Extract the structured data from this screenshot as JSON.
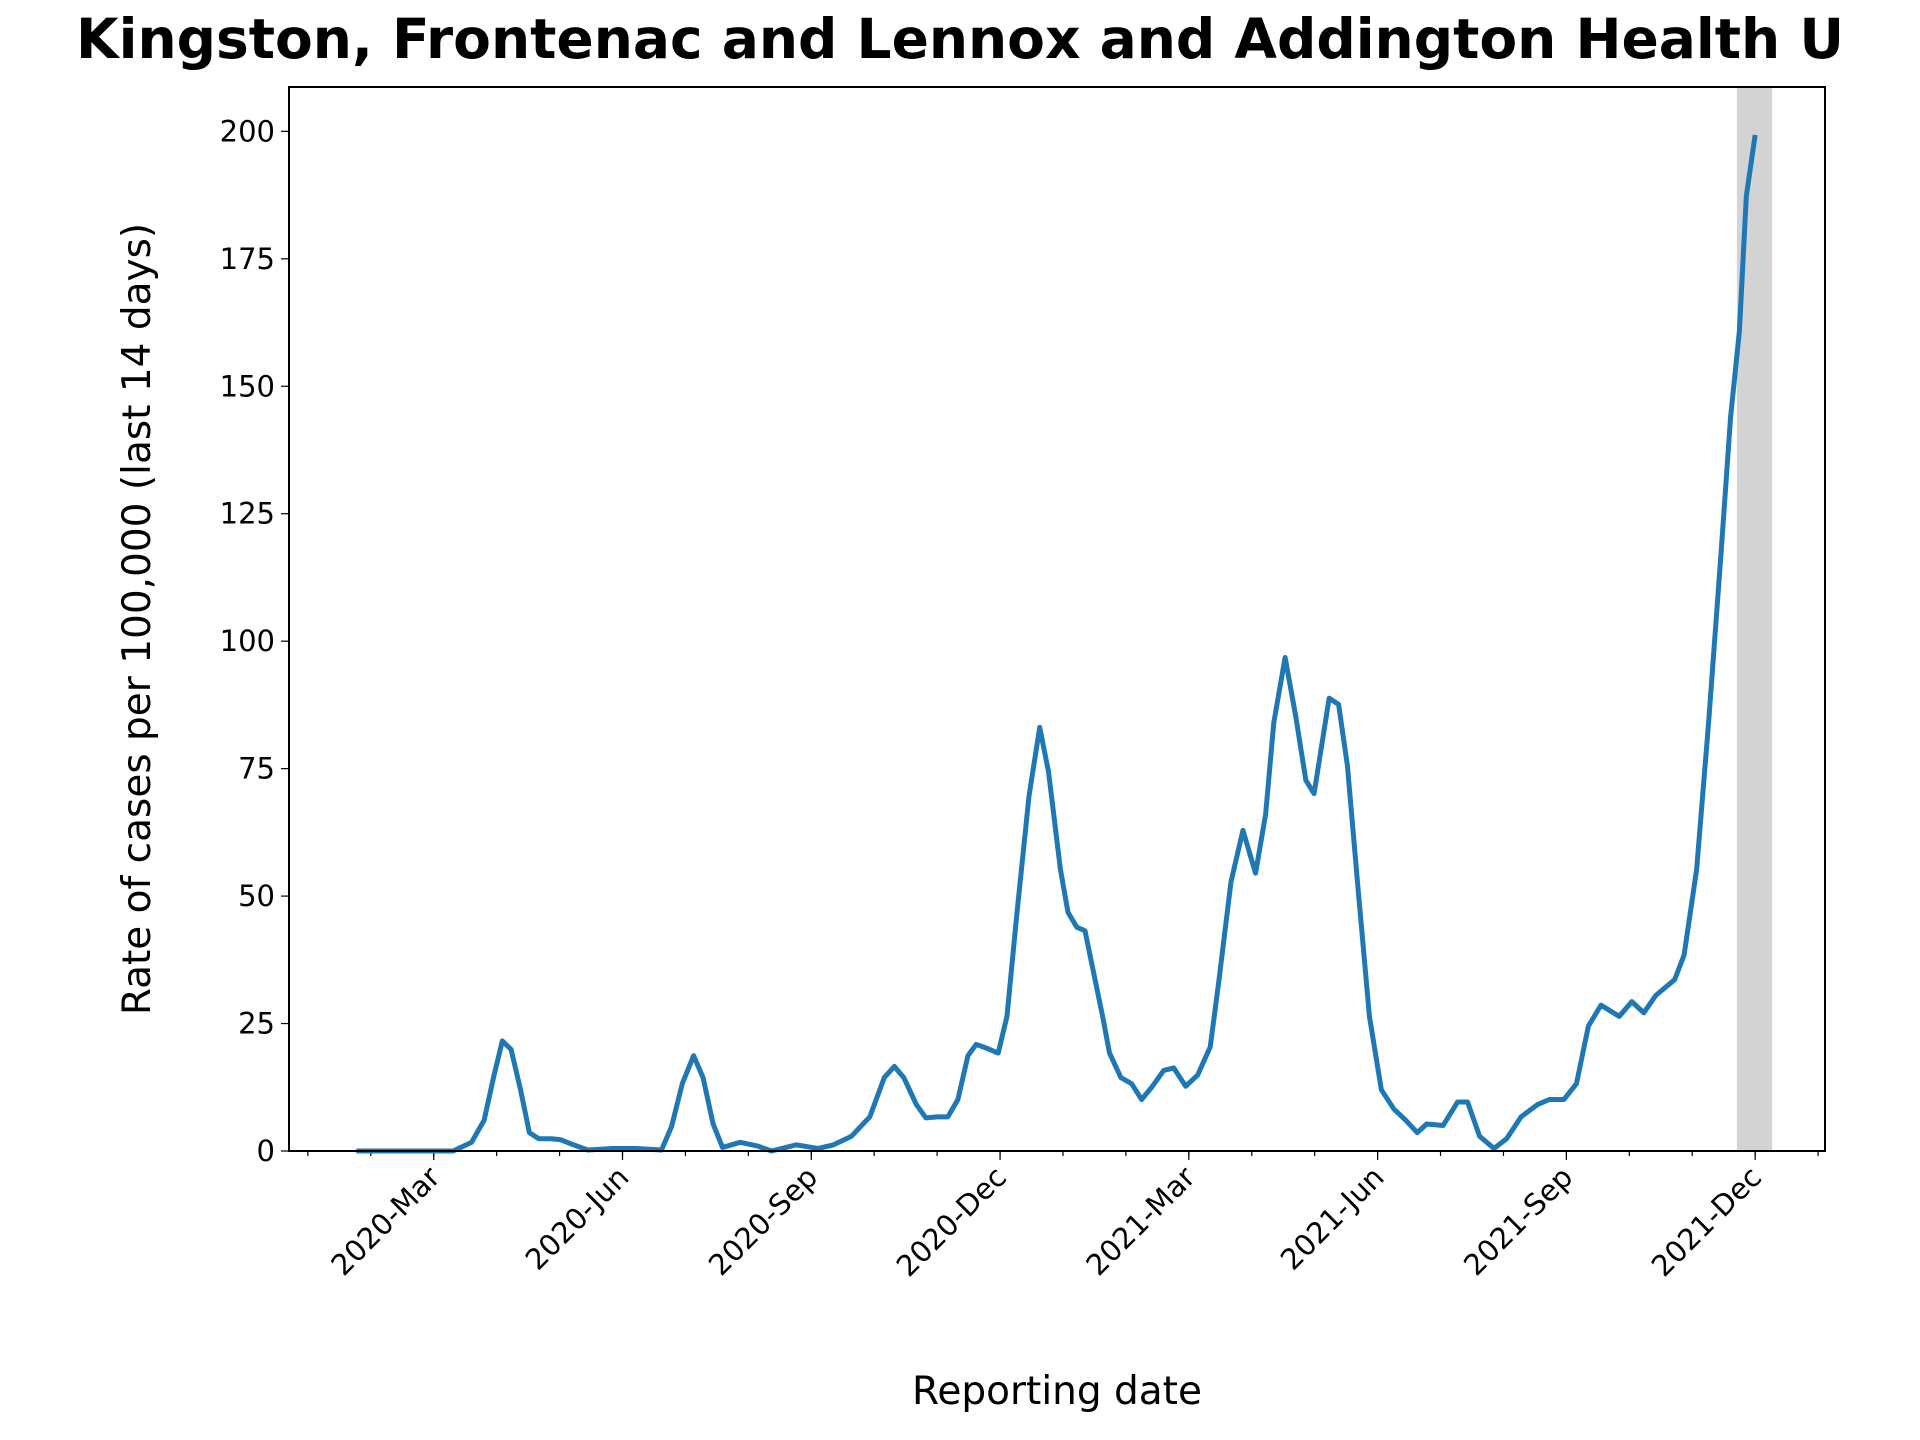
{
  "chart_data": {
    "type": "line",
    "title": "Kingston, Frontenac and Lennox and Addington Health U",
    "x_label": "Reporting date",
    "y_label": "Rate of cases per 100,000 (last 14 days)",
    "color": "#1f77b4",
    "x": [
      1.77,
      3.31,
      3.6,
      3.8,
      3.95,
      4.09,
      4.23,
      4.38,
      4.52,
      4.67,
      4.87,
      5.02,
      5.18,
      5.45,
      5.84,
      6.23,
      6.62,
      6.78,
      6.95,
      7.13,
      7.28,
      7.44,
      7.59,
      7.87,
      8.14,
      8.37,
      8.76,
      9.11,
      9.35,
      9.64,
      9.93,
      10.16,
      10.32,
      10.47,
      10.67,
      10.82,
      11.0,
      11.17,
      11.33,
      11.49,
      11.62,
      11.78,
      11.97,
      12.11,
      12.26,
      12.46,
      12.63,
      12.77,
      12.96,
      13.08,
      13.22,
      13.35,
      13.47,
      13.63,
      13.74,
      13.92,
      14.09,
      14.25,
      14.41,
      14.6,
      14.76,
      14.95,
      15.14,
      15.34,
      15.48,
      15.67,
      15.86,
      16.06,
      16.22,
      16.35,
      16.53,
      16.7,
      16.86,
      16.99,
      17.23,
      17.38,
      17.52,
      17.68,
      17.87,
      18.06,
      18.26,
      18.45,
      18.63,
      18.78,
      19.04,
      19.27,
      19.43,
      19.62,
      19.85,
      20.05,
      20.28,
      20.54,
      20.73,
      20.96,
      21.16,
      21.35,
      21.55,
      21.84,
      22.04,
      22.23,
      22.42,
      22.72,
      22.87,
      23.07,
      23.26,
      23.46,
      23.61,
      23.75,
      23.86,
      24.0
    ],
    "values": [
      0,
      0,
      1.7,
      6,
      14.4,
      21.6,
      19.9,
      12,
      3.6,
      2.4,
      2.4,
      2.2,
      1.4,
      0.2,
      0.5,
      0.5,
      0.2,
      4.8,
      13.2,
      18.7,
      14.4,
      5.3,
      0.7,
      1.7,
      1,
      0,
      1.2,
      0.5,
      1.2,
      2.9,
      6.7,
      14.4,
      16.6,
      14.4,
      9.1,
      6.5,
      6.7,
      6.7,
      10.1,
      18.7,
      20.9,
      20.2,
      19.2,
      26.4,
      45.6,
      69.6,
      83.1,
      74.4,
      55.2,
      46.8,
      43.9,
      43.2,
      36,
      26.4,
      19.2,
      14.4,
      13.2,
      10.1,
      12.5,
      15.8,
      16.3,
      12.7,
      14.9,
      20.4,
      33.6,
      52.8,
      62.9,
      54.5,
      66,
      84,
      96.8,
      85.2,
      72.7,
      70.1,
      88.8,
      87.6,
      75.6,
      52.8,
      26.4,
      12,
      8.2,
      6,
      3.6,
      5.3,
      5,
      9.6,
      9.6,
      2.9,
      0.5,
      2.4,
      6.7,
      9.1,
      10.1,
      10.1,
      13.2,
      24.5,
      28.6,
      26.4,
      29.3,
      27.1,
      30.5,
      33.6,
      38.4,
      55.2,
      84,
      117.6,
      144,
      160.9,
      187.3,
      199.3
    ],
    "xlim": [
      0.7,
      25.11
    ],
    "xticks": [
      {
        "value": 3,
        "label": "2020-Mar"
      },
      {
        "value": 6,
        "label": "2020-Jun"
      },
      {
        "value": 9,
        "label": "2020-Sep"
      },
      {
        "value": 12,
        "label": "2020-Dec"
      },
      {
        "value": 15,
        "label": "2021-Mar"
      },
      {
        "value": 18,
        "label": "2021-Jun"
      },
      {
        "value": 21,
        "label": "2021-Sep"
      },
      {
        "value": 24,
        "label": "2021-Dec"
      }
    ],
    "xminorticks": [
      1,
      2,
      3,
      4,
      5,
      6,
      7,
      8,
      9,
      10,
      11,
      12,
      13,
      14,
      15,
      16,
      17,
      18,
      19,
      20,
      21,
      22,
      23,
      24,
      25
    ],
    "ylim": [
      0,
      208.7
    ],
    "yticks": [
      0,
      25,
      50,
      75,
      100,
      125,
      150,
      175,
      200
    ],
    "highlight": {
      "range": [
        23.71,
        24.27
      ],
      "color": "#d3d3d3"
    }
  }
}
